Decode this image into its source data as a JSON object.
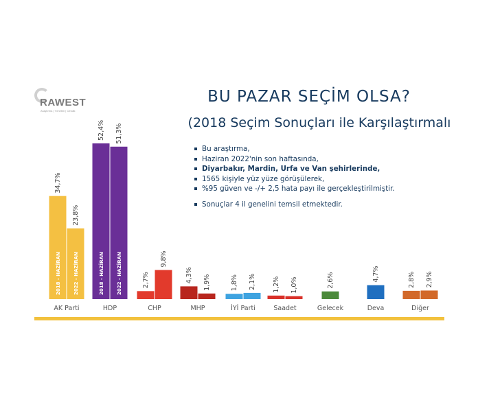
{
  "logo": {
    "brand": "RAWEST",
    "tagline": "Araştırma | Yönetim | Cihalik"
  },
  "header": {
    "title": "BU PAZAR SEÇİM OLSA?",
    "subtitle": "(2018 Seçim Sonuçları ile Karşılaştırmalı"
  },
  "notes": {
    "items": [
      "Bu araştırma,",
      "Haziran 2022'nin son haftasında,",
      "Diyarbakır, Mardin, Urfa ve Van şehirlerinde,",
      "1565 kişiyle yüz yüze görüşülerek,",
      "%95 güven ve -/+ 2,5 hata payı ile gerçekleştirilmiştir.",
      "Sonuçlar 4 il genelini temsil etmektedir."
    ]
  },
  "colors": {
    "title": "#173a5e",
    "baseline": "#f2c13d",
    "axis_text": "#555555"
  },
  "chart_data": {
    "type": "bar",
    "categories": [
      "AK Parti",
      "HDP",
      "CHP",
      "MHP",
      "İYİ Parti",
      "Saadet",
      "Gelecek",
      "Deva",
      "Diğer"
    ],
    "series": [
      {
        "name": "2018 - HAZİRAN",
        "values": [
          34.7,
          52.4,
          2.7,
          4.3,
          1.8,
          1.2,
          null,
          null,
          2.8
        ]
      },
      {
        "name": "2022 - HAZİRAN",
        "values": [
          23.8,
          51.3,
          9.8,
          1.9,
          2.1,
          1.0,
          2.6,
          4.7,
          2.9
        ]
      }
    ],
    "labels": [
      [
        "34,7%",
        "52,4%",
        "2,7%",
        "4,3%",
        "1,8%",
        "1,2%",
        null,
        null,
        "2,8%"
      ],
      [
        "23,8%",
        "51,3%",
        "9,8%",
        "1,9%",
        "2,1%",
        "1,0%",
        "2,6%",
        "4,7%",
        "2,9%"
      ]
    ],
    "bar_inner_labels": [
      "2018 - HAZİRAN",
      "2022 - HAZİRAN"
    ],
    "bar_colors": [
      [
        "#f4c042",
        "#f4c042"
      ],
      [
        "#6a2f97",
        "#6a2f97"
      ],
      [
        "#e23a2c",
        "#e23a2c"
      ],
      [
        "#b8261e",
        "#b8261e"
      ],
      [
        "#3ea3e0",
        "#3ea3e0"
      ],
      [
        "#d9312a",
        "#d9312a"
      ],
      [
        null,
        "#4b8a3a"
      ],
      [
        null,
        "#1f6fc0"
      ],
      [
        "#d2692a",
        "#d2692a"
      ]
    ],
    "ylim": [
      0,
      55
    ],
    "grid": false,
    "legend": "none"
  }
}
